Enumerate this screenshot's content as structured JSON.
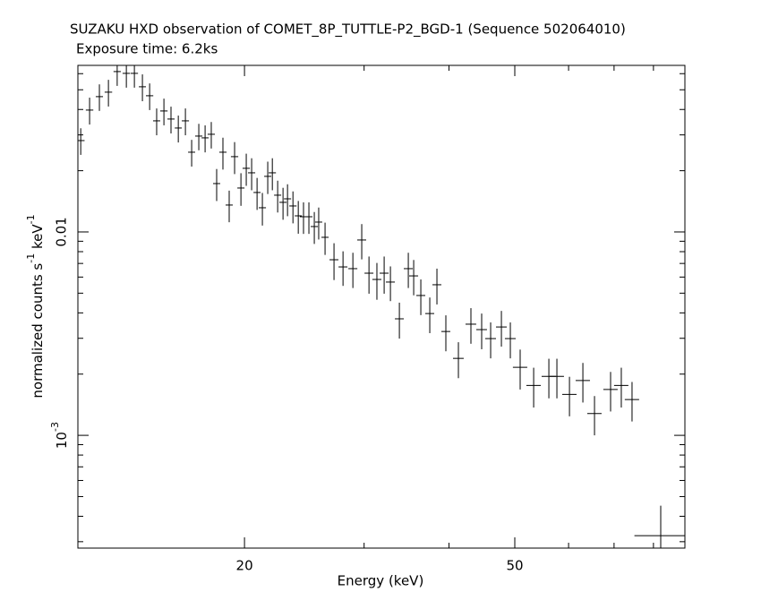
{
  "chart_data": {
    "type": "scatter",
    "title": "SUZAKU HXD observation of COMET_8P_TUTTLE-P2_BGD-1 (Sequence 502064010)",
    "subtitle": "Exposure time: 6.2ks",
    "x_label": "Energy (keV)",
    "y_label": "normalized counts s^-1 keV^-1",
    "log_x": true,
    "log_y": true,
    "xlim": [
      11.37,
      89.0
    ],
    "ylim": [
      0.000279,
      0.0659
    ],
    "xticks": [
      20,
      50
    ],
    "yticks": [
      {
        "value": 0.001,
        "label": "10^-3"
      },
      0.01
    ],
    "series": [
      {
        "color": "#000000",
        "x": [
          11.48,
          11.83,
          12.23,
          12.61,
          12.99,
          13.4,
          13.77,
          14.15,
          14.5,
          14.85,
          15.22,
          15.59,
          15.98,
          16.37,
          16.72,
          17.13,
          17.5,
          17.87,
          18.2,
          18.59,
          18.99,
          19.34,
          19.76,
          20.12,
          20.49,
          20.87,
          21.25,
          21.64,
          21.98,
          22.38,
          22.79,
          23.14,
          23.57,
          24.0,
          24.43,
          24.88,
          25.34,
          25.72,
          26.28,
          27.09,
          27.93,
          28.88,
          29.76,
          30.5,
          31.33,
          32.11,
          32.8,
          33.81,
          34.85,
          35.49,
          36.36,
          37.48,
          38.4,
          39.58,
          41.3,
          43.09,
          44.69,
          46.07,
          47.78,
          49.25,
          50.92,
          53.3,
          56.12,
          57.67,
          60.18,
          62.98,
          65.51,
          69.18,
          71.74,
          74.4,
          82.0
        ],
        "xerr": [
          0.15,
          0.15,
          0.15,
          0.16,
          0.16,
          0.17,
          0.17,
          0.17,
          0.18,
          0.18,
          0.19,
          0.19,
          0.19,
          0.2,
          0.2,
          0.21,
          0.21,
          0.22,
          0.22,
          0.23,
          0.23,
          0.24,
          0.24,
          0.25,
          0.25,
          0.25,
          0.26,
          0.26,
          0.27,
          0.27,
          0.28,
          0.28,
          0.29,
          0.29,
          0.3,
          0.3,
          0.31,
          0.31,
          0.32,
          0.41,
          0.42,
          0.44,
          0.45,
          0.46,
          0.48,
          0.49,
          0.5,
          0.51,
          0.53,
          0.54,
          0.55,
          0.57,
          0.58,
          0.6,
          0.75,
          0.78,
          0.81,
          0.84,
          0.87,
          0.9,
          1.24,
          1.3,
          1.36,
          1.4,
          1.46,
          1.53,
          1.59,
          1.68,
          1.74,
          1.81,
          7.0
        ],
        "values": [
          0.02813,
          0.03973,
          0.04626,
          0.04866,
          0.06144,
          0.06021,
          0.06021,
          0.05172,
          0.04673,
          0.03517,
          0.03933,
          0.0359,
          0.03243,
          0.03517,
          0.02466,
          0.0296,
          0.02901,
          0.03021,
          0.01729,
          0.02466,
          0.01356,
          0.02345,
          0.01644,
          0.02055,
          0.01953,
          0.01563,
          0.01315,
          0.01876,
          0.01953,
          0.01516,
          0.01398,
          0.01455,
          0.01342,
          0.012,
          0.01188,
          0.01188,
          0.01063,
          0.01118,
          0.00941,
          0.0073,
          0.00673,
          0.0066,
          0.00913,
          0.00627,
          0.00584,
          0.00627,
          0.00567,
          0.00374,
          0.0066,
          0.00608,
          0.00487,
          0.00397,
          0.0055,
          0.00324,
          0.00239,
          0.00352,
          0.00331,
          0.00299,
          0.00341,
          0.00299,
          0.00216,
          0.00176,
          0.00195,
          0.00195,
          0.00159,
          0.00186,
          0.00128,
          0.00168,
          0.00176,
          0.0015,
          0.000321
        ],
        "yerr": [
          0.0042,
          0.006,
          0.0069,
          0.0073,
          0.0092,
          0.009,
          0.009,
          0.0078,
          0.007,
          0.0053,
          0.0059,
          0.0054,
          0.0049,
          0.0053,
          0.0037,
          0.0044,
          0.0044,
          0.0045,
          0.0031,
          0.0044,
          0.0024,
          0.0042,
          0.003,
          0.0037,
          0.0035,
          0.0028,
          0.0024,
          0.0034,
          0.0035,
          0.0027,
          0.0025,
          0.0026,
          0.0024,
          0.0022,
          0.0021,
          0.0021,
          0.0019,
          0.002,
          0.0017,
          0.0015,
          0.0013,
          0.0013,
          0.0018,
          0.0013,
          0.0012,
          0.0013,
          0.0011,
          0.00075,
          0.0013,
          0.0012,
          0.00097,
          0.00079,
          0.0011,
          0.00065,
          0.00048,
          0.0007,
          0.00066,
          0.0006,
          0.00068,
          0.0006,
          0.00048,
          0.00039,
          0.00043,
          0.00043,
          0.00035,
          0.00041,
          0.00028,
          0.00037,
          0.00039,
          0.00033,
          0.00013
        ]
      }
    ]
  }
}
